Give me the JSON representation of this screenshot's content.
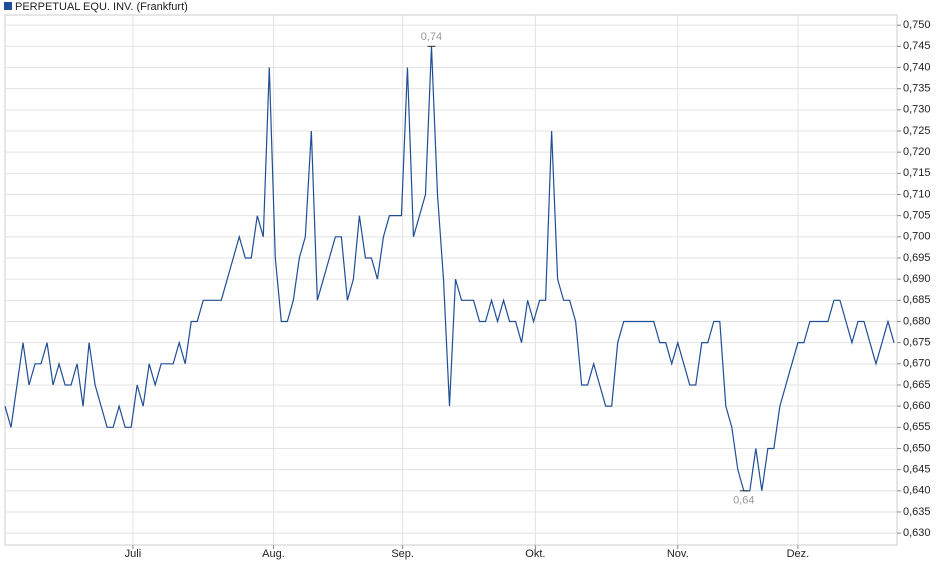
{
  "chart_data": {
    "type": "line",
    "series": [
      {
        "name": "PERPETUAL EQU. INV. (Frankfurt)",
        "color": "#1f4e96",
        "values": [
          0.66,
          0.655,
          0.665,
          0.675,
          0.665,
          0.67,
          0.67,
          0.675,
          0.665,
          0.67,
          0.665,
          0.665,
          0.67,
          0.66,
          0.675,
          0.665,
          0.66,
          0.655,
          0.655,
          0.66,
          0.655,
          0.655,
          0.665,
          0.66,
          0.67,
          0.665,
          0.67,
          0.67,
          0.67,
          0.675,
          0.67,
          0.68,
          0.68,
          0.685,
          0.685,
          0.685,
          0.685,
          0.69,
          0.695,
          0.7,
          0.695,
          0.695,
          0.705,
          0.7,
          0.74,
          0.695,
          0.68,
          0.68,
          0.685,
          0.695,
          0.7,
          0.725,
          0.685,
          0.69,
          0.695,
          0.7,
          0.7,
          0.685,
          0.69,
          0.705,
          0.695,
          0.695,
          0.69,
          0.7,
          0.705,
          0.705,
          0.705,
          0.74,
          0.7,
          0.705,
          0.71,
          0.745,
          0.71,
          0.69,
          0.66,
          0.69,
          0.685,
          0.685,
          0.685,
          0.68,
          0.68,
          0.685,
          0.68,
          0.685,
          0.68,
          0.68,
          0.675,
          0.685,
          0.68,
          0.685,
          0.685,
          0.725,
          0.69,
          0.685,
          0.685,
          0.68,
          0.665,
          0.665,
          0.67,
          0.665,
          0.66,
          0.66,
          0.675,
          0.68,
          0.68,
          0.68,
          0.68,
          0.68,
          0.68,
          0.675,
          0.675,
          0.67,
          0.675,
          0.67,
          0.665,
          0.665,
          0.675,
          0.675,
          0.68,
          0.68,
          0.66,
          0.655,
          0.645,
          0.64,
          0.64,
          0.65,
          0.64,
          0.65,
          0.65,
          0.66,
          0.665,
          0.67,
          0.675,
          0.675,
          0.68,
          0.68,
          0.68,
          0.68,
          0.685,
          0.685,
          0.68,
          0.675,
          0.68,
          0.68,
          0.675,
          0.67,
          0.675,
          0.68,
          0.675
        ]
      }
    ],
    "xlim": [
      0,
      148.5
    ],
    "xticks": [
      {
        "value": 21.3,
        "label": "Juli"
      },
      {
        "value": 44.7,
        "label": "Aug."
      },
      {
        "value": 66.2,
        "label": "Sep."
      },
      {
        "value": 88.3,
        "label": "Okt."
      },
      {
        "value": 112,
        "label": "Nov."
      },
      {
        "value": 132,
        "label": "Dez."
      }
    ],
    "ylim": [
      0.6272,
      0.7524
    ],
    "yticks": [
      {
        "value": 0.63,
        "label": "0,630"
      },
      {
        "value": 0.635,
        "label": "0,635"
      },
      {
        "value": 0.64,
        "label": "0,640"
      },
      {
        "value": 0.645,
        "label": "0,645"
      },
      {
        "value": 0.65,
        "label": "0,650"
      },
      {
        "value": 0.655,
        "label": "0,655"
      },
      {
        "value": 0.66,
        "label": "0,660"
      },
      {
        "value": 0.665,
        "label": "0,665"
      },
      {
        "value": 0.67,
        "label": "0,670"
      },
      {
        "value": 0.675,
        "label": "0,675"
      },
      {
        "value": 0.68,
        "label": "0,680"
      },
      {
        "value": 0.685,
        "label": "0,685"
      },
      {
        "value": 0.69,
        "label": "0,690"
      },
      {
        "value": 0.695,
        "label": "0,695"
      },
      {
        "value": 0.7,
        "label": "0,700"
      },
      {
        "value": 0.705,
        "label": "0,705"
      },
      {
        "value": 0.71,
        "label": "0,710"
      },
      {
        "value": 0.715,
        "label": "0,715"
      },
      {
        "value": 0.72,
        "label": "0,720"
      },
      {
        "value": 0.725,
        "label": "0,725"
      },
      {
        "value": 0.73,
        "label": "0,730"
      },
      {
        "value": 0.735,
        "label": "0,735"
      },
      {
        "value": 0.74,
        "label": "0,740"
      },
      {
        "value": 0.745,
        "label": "0,745"
      },
      {
        "value": 0.75,
        "label": "0,750"
      }
    ],
    "grid": true,
    "annotations": [
      {
        "text": "0,74",
        "x": 71,
        "y": 0.745,
        "position": "above"
      },
      {
        "text": "0,64",
        "x": 123,
        "y": 0.64,
        "position": "below"
      }
    ]
  }
}
